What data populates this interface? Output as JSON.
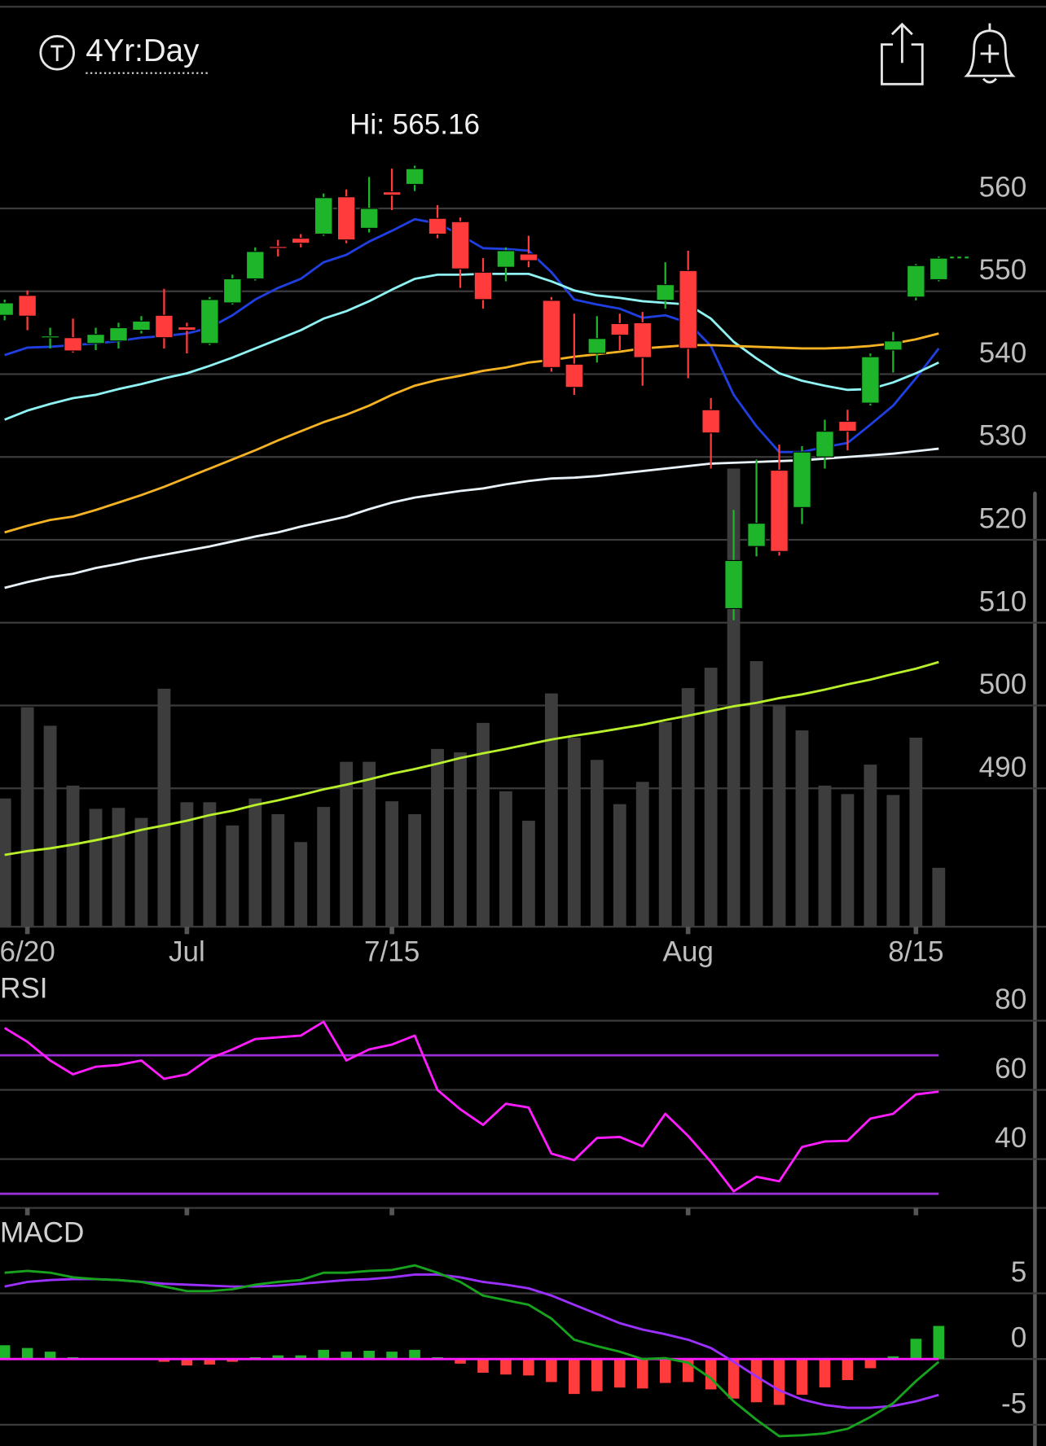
{
  "header": {
    "timeframe": "4Yr:Day"
  },
  "chart_data": [
    {
      "type": "candlestick",
      "annotation": "Hi: 565.16",
      "categories": [
        null,
        "6/20",
        null,
        null,
        null,
        null,
        null,
        null,
        "Jul",
        null,
        null,
        null,
        null,
        null,
        null,
        null,
        null,
        "7/15",
        null,
        null,
        null,
        null,
        null,
        null,
        null,
        null,
        null,
        null,
        null,
        null,
        "Aug",
        null,
        null,
        null,
        null,
        null,
        null,
        null,
        null,
        null,
        "8/15",
        null
      ],
      "open": [
        547.1,
        549.5,
        544.4,
        544.4,
        543.7,
        544.0,
        545.3,
        547.1,
        545.7,
        543.7,
        548.6,
        551.5,
        555.4,
        556.4,
        556.9,
        561.4,
        557.6,
        562.0,
        562.9,
        558.8,
        558.4,
        552.3,
        552.9,
        554.5,
        548.9,
        541.2,
        542.5,
        546.1,
        546.2,
        548.9,
        552.5,
        535.7,
        511.7,
        519.2,
        528.4,
        523.9,
        530.0,
        534.3,
        536.5,
        542.9,
        549.3,
        551.4
      ],
      "high": [
        549.0,
        550.1,
        545.6,
        546.7,
        545.6,
        546.2,
        547.0,
        550.3,
        546.2,
        549.3,
        552.0,
        555.3,
        556.2,
        556.9,
        561.8,
        562.3,
        563.8,
        564.8,
        565.16,
        560.4,
        558.9,
        554.0,
        555.3,
        556.7,
        549.3,
        547.3,
        547.0,
        547.3,
        547.5,
        553.5,
        554.9,
        537.1,
        523.6,
        529.7,
        531.5,
        531.3,
        534.5,
        535.7,
        542.5,
        545.1,
        553.3,
        554.2
      ],
      "low": [
        546.5,
        545.3,
        543.1,
        542.6,
        542.9,
        543.1,
        544.9,
        543.1,
        542.5,
        543.5,
        548.4,
        551.3,
        554.2,
        555.3,
        556.7,
        555.8,
        557.1,
        559.8,
        562.1,
        556.4,
        550.4,
        547.9,
        551.2,
        552.9,
        540.3,
        537.5,
        541.4,
        542.9,
        538.6,
        547.9,
        539.5,
        528.6,
        510.3,
        518.0,
        518.1,
        521.9,
        528.6,
        530.8,
        536.2,
        540.2,
        548.9,
        551.2
      ],
      "close": [
        548.6,
        547.0,
        544.6,
        542.8,
        544.8,
        545.6,
        546.4,
        544.4,
        545.3,
        549.0,
        551.5,
        554.8,
        555.2,
        555.8,
        561.3,
        556.2,
        560.0,
        561.6,
        564.8,
        556.9,
        552.7,
        549.0,
        554.9,
        553.7,
        540.8,
        538.4,
        544.3,
        544.7,
        542.0,
        550.8,
        543.1,
        532.9,
        517.5,
        522.0,
        518.6,
        530.6,
        533.1,
        533.1,
        542.1,
        544.0,
        553.1,
        554.0
      ],
      "up_color": "#1fb52a",
      "down_color": "#ff3b3b",
      "lines": [
        {
          "color": "#1f3fe0",
          "values": [
            542.3,
            543.2,
            543.3,
            543.5,
            543.7,
            544.0,
            544.4,
            544.6,
            544.9,
            545.6,
            547.1,
            549.0,
            550.4,
            551.5,
            553.5,
            554.4,
            556.0,
            557.3,
            558.7,
            558.2,
            556.8,
            555.2,
            555.1,
            554.9,
            552.3,
            549.0,
            548.4,
            547.9,
            546.8,
            547.1,
            546.2,
            543.4,
            537.5,
            533.7,
            530.6,
            530.6,
            531.2,
            531.7,
            533.9,
            536.2,
            539.5,
            543.1
          ]
        },
        {
          "color": "#8ff3f3",
          "values": [
            534.5,
            535.6,
            536.4,
            537.1,
            537.5,
            538.2,
            538.8,
            539.5,
            540.1,
            541.0,
            542.0,
            543.1,
            544.2,
            545.3,
            546.7,
            547.6,
            548.8,
            550.2,
            551.5,
            552.0,
            552.0,
            552.1,
            552.1,
            552.1,
            551.2,
            550.1,
            549.5,
            549.2,
            548.8,
            548.6,
            548.4,
            546.7,
            543.9,
            541.9,
            540.1,
            539.2,
            538.6,
            538.1,
            538.2,
            539.0,
            540.1,
            541.4
          ]
        },
        {
          "color": "#f5b324",
          "values": [
            520.9,
            521.7,
            522.4,
            522.8,
            523.6,
            524.5,
            525.4,
            526.4,
            527.5,
            528.6,
            529.7,
            530.8,
            532.0,
            533.1,
            534.2,
            535.1,
            536.2,
            537.5,
            538.6,
            539.3,
            539.8,
            540.4,
            540.8,
            541.4,
            541.7,
            542.1,
            542.4,
            542.7,
            543.1,
            543.3,
            543.5,
            543.5,
            543.4,
            543.3,
            543.2,
            543.1,
            543.1,
            543.2,
            543.4,
            543.7,
            544.2,
            544.9
          ]
        },
        {
          "color": "#e8f2f8",
          "values": [
            514.2,
            514.9,
            515.5,
            515.9,
            516.6,
            517.1,
            517.7,
            518.2,
            518.7,
            519.2,
            519.8,
            520.4,
            520.9,
            521.6,
            522.2,
            522.8,
            523.7,
            524.5,
            525.1,
            525.5,
            525.9,
            526.2,
            526.7,
            527.1,
            527.4,
            527.5,
            527.7,
            528.0,
            528.3,
            528.6,
            528.9,
            529.2,
            529.3,
            529.4,
            529.5,
            529.6,
            529.8,
            530.0,
            530.2,
            530.4,
            530.7,
            531.0
          ]
        }
      ],
      "volume": [
        40.9,
        70.0,
        64.1,
        45.0,
        37.6,
        37.9,
        34.7,
        75.9,
        39.7,
        39.7,
        32.3,
        40.9,
        35.9,
        27.0,
        38.2,
        52.6,
        52.6,
        40.0,
        35.9,
        56.7,
        55.6,
        65.0,
        43.2,
        33.8,
        74.4,
        60.3,
        53.2,
        39.1,
        46.2,
        65.3,
        76.1,
        82.6,
        146.1,
        84.7,
        70.6,
        62.6,
        45.0,
        42.3,
        51.7,
        42.0,
        60.3,
        18.8
      ],
      "volume_color": "#3d3d3d",
      "volume_ma": {
        "color": "#b8f02a",
        "values": [
          22.9,
          24.1,
          25.0,
          26.2,
          27.6,
          29.1,
          30.9,
          32.3,
          33.8,
          35.6,
          37.0,
          38.8,
          40.3,
          42.0,
          43.8,
          45.3,
          47.0,
          48.8,
          50.3,
          52.0,
          53.8,
          55.3,
          56.7,
          58.2,
          59.7,
          60.9,
          62.0,
          63.2,
          64.4,
          65.9,
          67.3,
          68.8,
          70.3,
          71.4,
          72.9,
          74.1,
          75.6,
          77.3,
          78.8,
          80.6,
          82.3,
          84.4
        ]
      },
      "ylim": [
        473.3,
        574
      ],
      "yticks": [
        490,
        500,
        510,
        520,
        530,
        540,
        550,
        560
      ],
      "grid": true
    },
    {
      "type": "line",
      "label": "RSI",
      "color": "#ff1cff",
      "values": [
        77.9,
        73.9,
        68.5,
        64.5,
        66.7,
        67.2,
        68.5,
        63.2,
        64.5,
        69.1,
        71.7,
        74.7,
        75.2,
        75.7,
        79.7,
        68.5,
        71.7,
        73.1,
        75.7,
        60.0,
        54.4,
        49.9,
        56.0,
        54.9,
        41.6,
        39.7,
        46.1,
        46.4,
        43.7,
        53.1,
        46.7,
        39.2,
        30.7,
        34.9,
        33.6,
        43.5,
        45.1,
        45.3,
        51.7,
        53.1,
        58.7,
        59.5
      ],
      "reference_lines": [
        70,
        30
      ],
      "reference_color": "#9b2fd6",
      "ylim": [
        25.9,
        92.5
      ],
      "yticks": [
        40,
        60,
        80
      ],
      "grid": true
    },
    {
      "type": "macd",
      "label": "MACD",
      "macd": {
        "color": "#17a31e",
        "values": [
          6.57,
          6.71,
          6.57,
          6.22,
          6.08,
          6.01,
          5.87,
          5.52,
          5.17,
          5.17,
          5.31,
          5.66,
          5.87,
          6.01,
          6.57,
          6.57,
          6.71,
          6.78,
          7.13,
          6.57,
          5.87,
          4.83,
          4.48,
          4.13,
          3.08,
          1.47,
          0.98,
          0.56,
          0,
          0.07,
          -0.28,
          -1.47,
          -3.22,
          -4.62,
          -5.87,
          -5.8,
          -5.66,
          -5.31,
          -4.41,
          -3.36,
          -1.68,
          -0.21
        ]
      },
      "signal": {
        "color": "#9b30ff",
        "values": [
          5.52,
          5.87,
          6.01,
          6.08,
          6.08,
          6.01,
          5.87,
          5.73,
          5.66,
          5.59,
          5.52,
          5.52,
          5.59,
          5.73,
          5.87,
          6.01,
          6.08,
          6.22,
          6.43,
          6.43,
          6.22,
          5.87,
          5.66,
          5.38,
          4.83,
          4.13,
          3.43,
          2.73,
          2.24,
          1.89,
          1.47,
          0.84,
          -0.21,
          -1.33,
          -2.38,
          -3.08,
          -3.5,
          -3.71,
          -3.71,
          -3.57,
          -3.22,
          -2.73
        ]
      },
      "histogram": [
        1.05,
        0.84,
        0.56,
        0.14,
        0,
        0,
        0,
        -0.21,
        -0.49,
        -0.42,
        -0.21,
        0.14,
        0.28,
        0.28,
        0.7,
        0.56,
        0.63,
        0.56,
        0.7,
        0.14,
        -0.35,
        -1.04,
        -1.18,
        -1.25,
        -1.75,
        -2.66,
        -2.45,
        -2.17,
        -2.24,
        -1.82,
        -1.75,
        -2.31,
        -3.01,
        -3.29,
        -3.49,
        -2.72,
        -2.16,
        -1.6,
        -0.7,
        0.21,
        1.54,
        2.52
      ],
      "zero_color": "#ff1cff",
      "ylim": [
        -6.6,
        10.8
      ],
      "yticks": [
        -5,
        0,
        5
      ],
      "grid": true
    }
  ]
}
